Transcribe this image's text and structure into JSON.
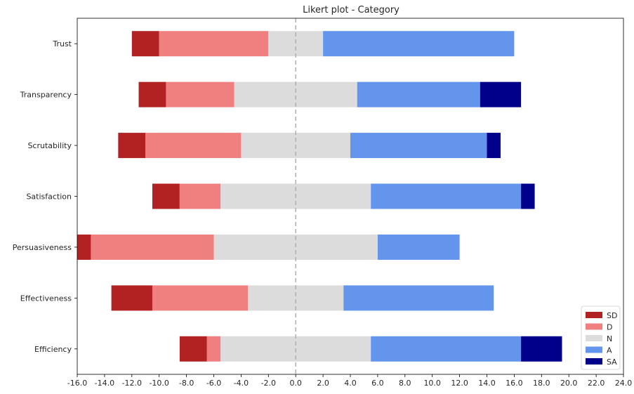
{
  "chart_data": {
    "type": "bar",
    "orientation": "horizontal-stacked-diverging",
    "title": "Likert plot - Category",
    "xlabel": "",
    "ylabel": "",
    "xlim": [
      -16,
      24
    ],
    "xticks": [
      "-16.0",
      "-14.0",
      "-12.0",
      "-10.0",
      "-8.0",
      "-6.0",
      "-4.0",
      "-2.0",
      "0.0",
      "2.0",
      "4.0",
      "6.0",
      "8.0",
      "10.0",
      "12.0",
      "14.0",
      "16.0",
      "18.0",
      "20.0",
      "22.0",
      "24.0"
    ],
    "xtick_values": [
      -16,
      -14,
      -12,
      -10,
      -8,
      -6,
      -4,
      -2,
      0,
      2,
      4,
      6,
      8,
      10,
      12,
      14,
      16,
      18,
      20,
      22,
      24
    ],
    "reference_line": {
      "x": 0,
      "style": "dashed",
      "color": "#b0b0b0"
    },
    "grid": false,
    "legend_position": "lower-right",
    "categories": [
      "Trust",
      "Transparency",
      "Scrutability",
      "Satisfaction",
      "Persuasiveness",
      "Effectiveness",
      "Efficiency"
    ],
    "series": [
      {
        "name": "SD",
        "color": "#b22222",
        "values": [
          2,
          2,
          2,
          2,
          1,
          3,
          2
        ]
      },
      {
        "name": "D",
        "color": "#f08080",
        "values": [
          8,
          5,
          7,
          3,
          9,
          7,
          1
        ]
      },
      {
        "name": "N",
        "color": "#dcdcdc",
        "values": [
          4,
          9,
          8,
          11,
          12,
          7,
          11
        ]
      },
      {
        "name": "A",
        "color": "#6495ed",
        "values": [
          14,
          9,
          10,
          11,
          6,
          11,
          11
        ]
      },
      {
        "name": "SA",
        "color": "#00008b",
        "values": [
          0,
          3,
          1,
          1,
          0,
          0,
          3
        ]
      }
    ],
    "offsets": [
      -12,
      -11.5,
      -13,
      -10.5,
      -16,
      -13.5,
      -8.5
    ]
  }
}
